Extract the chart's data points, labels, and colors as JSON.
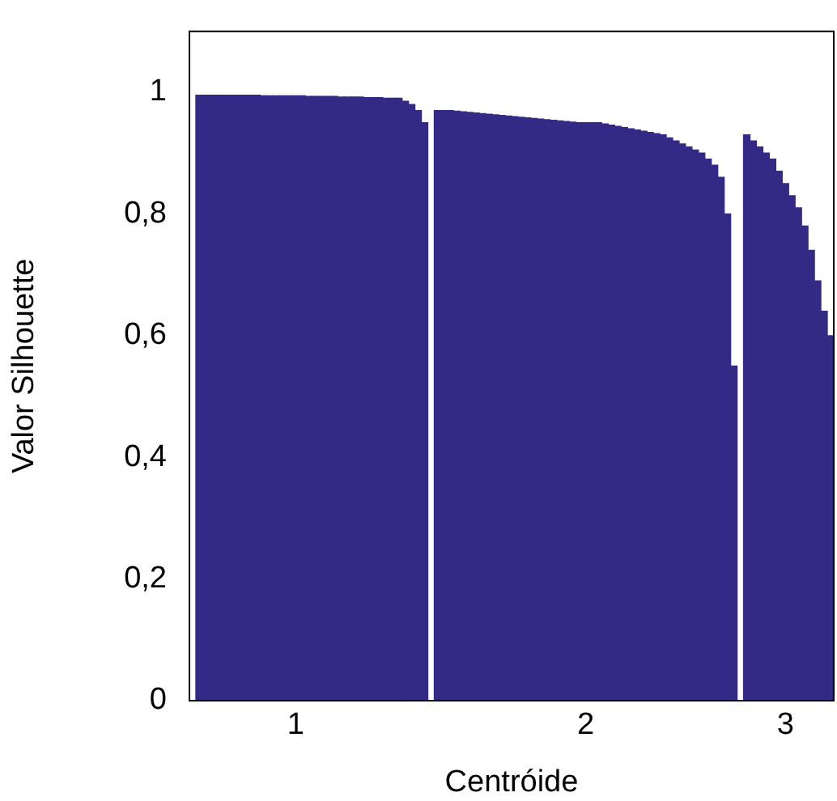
{
  "chart_data": {
    "type": "bar",
    "xlabel": "Centróide",
    "ylabel": "Valor Silhouette",
    "categories": [
      null,
      null,
      null,
      null,
      null,
      null,
      null,
      null,
      null,
      null,
      null,
      null,
      null,
      null,
      null,
      null,
      "1",
      null,
      null,
      null,
      null,
      null,
      null,
      null,
      null,
      null,
      null,
      null,
      null,
      null,
      null,
      null,
      null,
      null,
      null,
      null,
      null,
      null,
      null,
      null,
      null,
      null,
      null,
      null,
      null,
      null,
      null,
      null,
      null,
      null,
      null,
      null,
      null,
      null,
      null,
      null,
      null,
      null,
      null,
      null,
      null,
      "2",
      null,
      null,
      null,
      null,
      null,
      null,
      null,
      null,
      null,
      null,
      null,
      null,
      null,
      null,
      null,
      null,
      null,
      null,
      null,
      null,
      null,
      null,
      null,
      null,
      null,
      null,
      null,
      null,
      null,
      null,
      "3",
      null,
      null,
      null,
      null,
      null,
      null,
      null
    ],
    "values": [
      null,
      0.995,
      0.995,
      0.995,
      0.995,
      0.995,
      0.995,
      0.995,
      0.995,
      0.995,
      0.995,
      0.994,
      0.994,
      0.994,
      0.994,
      0.994,
      0.994,
      0.994,
      0.993,
      0.993,
      0.993,
      0.993,
      0.993,
      0.992,
      0.992,
      0.992,
      0.992,
      0.991,
      0.991,
      0.991,
      0.99,
      0.99,
      0.99,
      0.985,
      0.98,
      0.97,
      0.95,
      null,
      0.97,
      0.97,
      0.97,
      0.969,
      0.968,
      0.967,
      0.966,
      0.965,
      0.964,
      0.963,
      0.962,
      0.961,
      0.96,
      0.959,
      0.958,
      0.957,
      0.956,
      0.955,
      0.954,
      0.953,
      0.952,
      0.951,
      0.95,
      0.95,
      0.95,
      0.95,
      0.948,
      0.946,
      0.944,
      0.942,
      0.94,
      0.938,
      0.936,
      0.934,
      0.932,
      0.93,
      0.925,
      0.92,
      0.915,
      0.91,
      0.905,
      0.9,
      0.89,
      0.88,
      0.86,
      0.8,
      0.55,
      null,
      0.93,
      0.92,
      0.91,
      0.9,
      0.89,
      0.87,
      0.85,
      0.83,
      0.81,
      0.78,
      0.74,
      0.69,
      0.64,
      0.6
    ],
    "color": "#332a86",
    "ylim": [
      0,
      1.1
    ],
    "yticks": [
      0,
      {
        "value": 0.2,
        "label": "0,2"
      },
      {
        "value": 0.4,
        "label": "0,4"
      },
      {
        "value": 0.6,
        "label": "0,6"
      },
      {
        "value": 0.8,
        "label": "0,8"
      },
      1
    ]
  }
}
